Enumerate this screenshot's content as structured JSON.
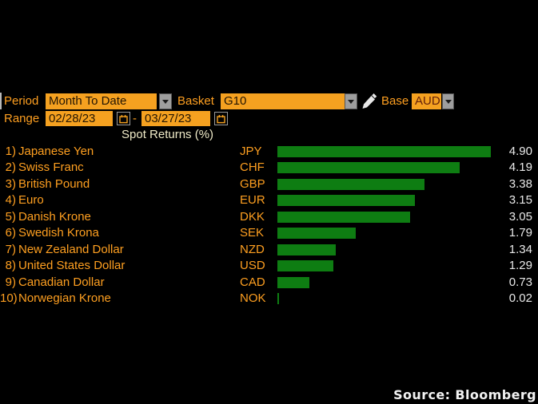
{
  "toolbar": {
    "period": {
      "label": "Period",
      "value": "Month To Date"
    },
    "basket": {
      "label": "Basket",
      "value": "G10"
    },
    "base": {
      "label": "Base",
      "value": "AUD"
    },
    "range": {
      "label": "Range",
      "start": "02/28/23",
      "separator": "-",
      "end": "03/27/23"
    }
  },
  "chart_data": {
    "type": "bar",
    "orientation": "horizontal",
    "title": "Spot Returns (%)",
    "unit": "%",
    "grid": false,
    "xlim": [
      0,
      6
    ],
    "ranks": [
      "1)",
      "2)",
      "3)",
      "4)",
      "5)",
      "6)",
      "7)",
      "8)",
      "9)",
      "10)"
    ],
    "categories": [
      "Japanese Yen",
      "Swiss Franc",
      "British Pound",
      "Euro",
      "Danish Krone",
      "Swedish Krona",
      "New Zealand Dollar",
      "United States Dollar",
      "Canadian Dollar",
      "Norwegian Krone"
    ],
    "tickers": [
      "JPY",
      "CHF",
      "GBP",
      "EUR",
      "DKK",
      "SEK",
      "NZD",
      "USD",
      "CAD",
      "NOK"
    ],
    "values": [
      4.9,
      4.19,
      3.38,
      3.15,
      3.05,
      1.79,
      1.34,
      1.29,
      0.73,
      0.02
    ],
    "value_labels": [
      "4.90",
      "4.19",
      "3.38",
      "3.15",
      "3.05",
      "1.79",
      "1.34",
      "1.29",
      "0.73",
      "0.02"
    ],
    "bar_color": "#0e7d12"
  },
  "footer": {
    "source": "Source: Bloomberg"
  },
  "icons": {
    "dropdown_arrow": "triangle-down",
    "calendar": "calendar-glyph",
    "pencil": "pencil-glyph"
  },
  "colors": {
    "background": "#000000",
    "field_amber": "#f5a120",
    "label_orange": "#fe9f20",
    "bar_green": "#0e7d12",
    "value_text": "#e9e9e9",
    "title_text": "#f0ebc8",
    "field_text": "#221402",
    "base_value_text": "#63200a"
  }
}
